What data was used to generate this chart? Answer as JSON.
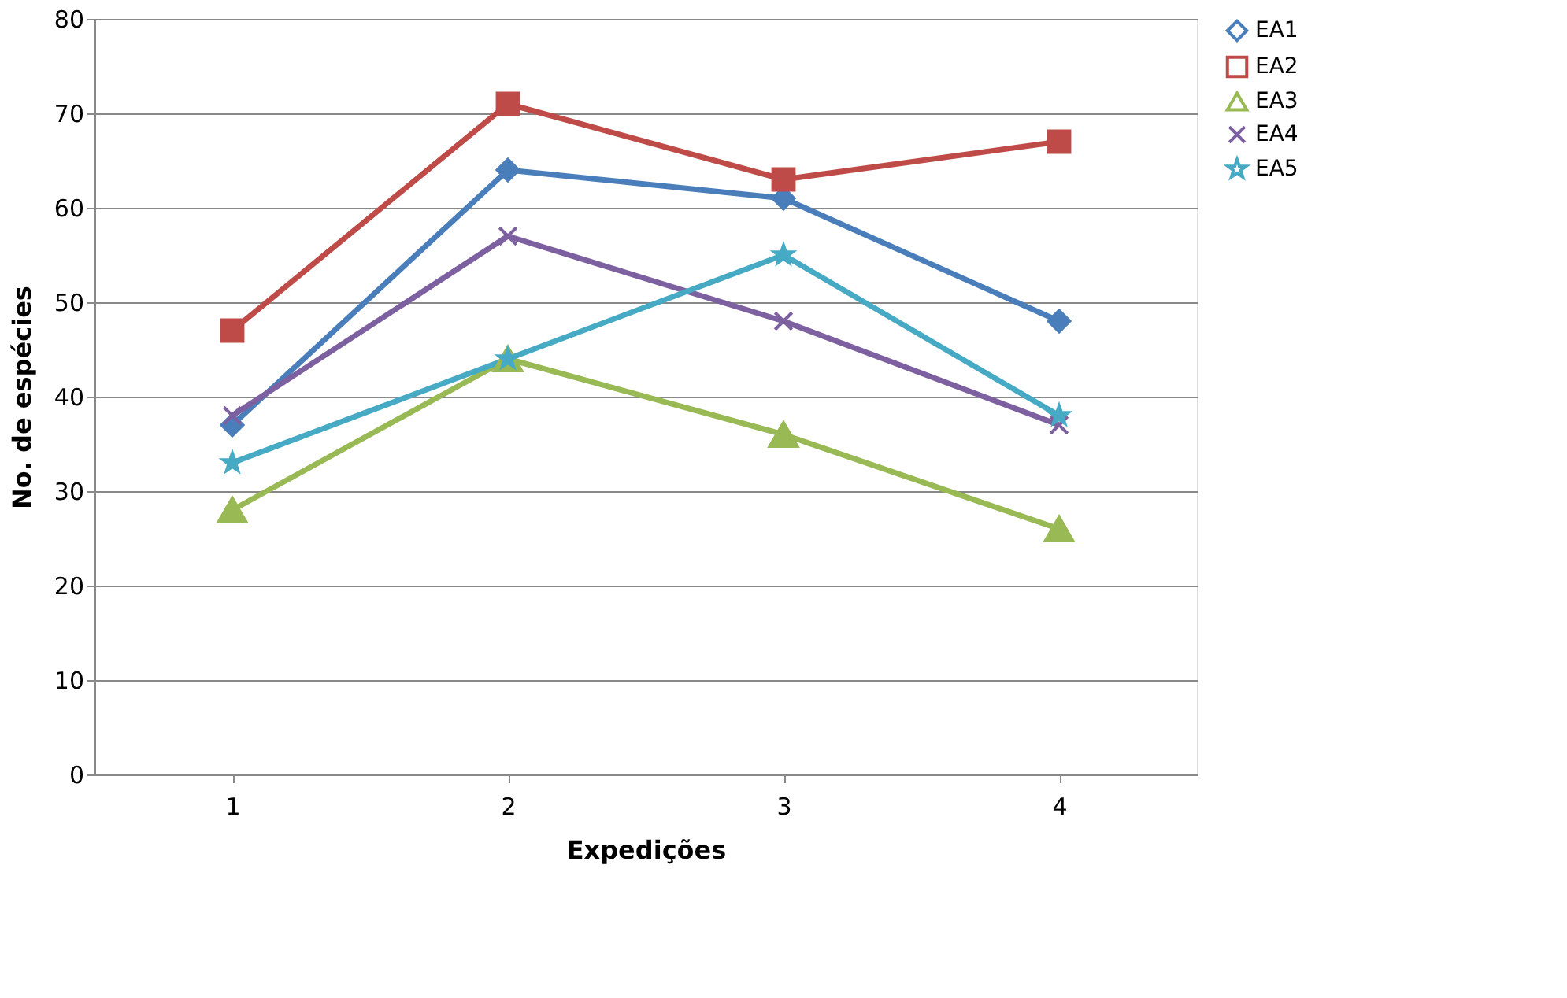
{
  "chart_data": {
    "type": "line",
    "xlabel": "Expedições",
    "ylabel": "No. de espécies",
    "categories": [
      "1",
      "2",
      "3",
      "4"
    ],
    "series": [
      {
        "name": "EA1",
        "color": "#4a7ebb",
        "marker": "diamond",
        "values": [
          37,
          64,
          61,
          48
        ]
      },
      {
        "name": "EA2",
        "color": "#be4b48",
        "marker": "square",
        "values": [
          47,
          71,
          63,
          67
        ]
      },
      {
        "name": "EA3",
        "color": "#98b954",
        "marker": "triangle",
        "values": [
          28,
          44,
          36,
          26
        ]
      },
      {
        "name": "EA4",
        "color": "#7d60a0",
        "marker": "cross",
        "values": [
          38,
          57,
          48,
          37
        ]
      },
      {
        "name": "EA5",
        "color": "#46aac5",
        "marker": "star",
        "values": [
          33,
          44,
          55,
          38
        ]
      }
    ],
    "ylim": [
      0,
      80
    ],
    "yticks": [
      0,
      10,
      20,
      30,
      40,
      50,
      60,
      70,
      80
    ],
    "grid": "y",
    "legend": "right",
    "line_style": "solid"
  }
}
